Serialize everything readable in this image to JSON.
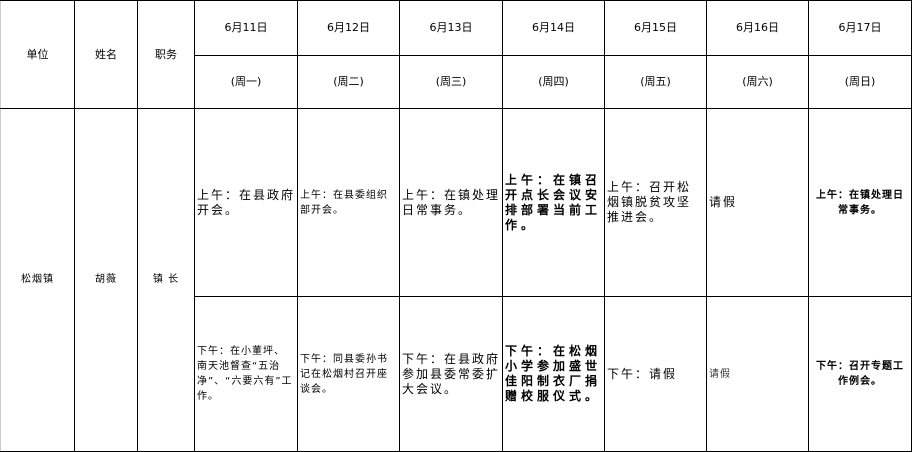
{
  "headers": {
    "unit": "单位",
    "name": "姓名",
    "position": "职务"
  },
  "days": [
    {
      "date": "6月11日",
      "weekday": "(周一)"
    },
    {
      "date": "6月12日",
      "weekday": "(周二)"
    },
    {
      "date": "6月13日",
      "weekday": "(周三)"
    },
    {
      "date": "6月14日",
      "weekday": "(周四)"
    },
    {
      "date": "6月15日",
      "weekday": "(周五)"
    },
    {
      "date": "6月16日",
      "weekday": "(周六)"
    },
    {
      "date": "6月17日",
      "weekday": "(周日)"
    }
  ],
  "row": {
    "unit": "松烟镇",
    "name": "胡薇",
    "position": "镇 长",
    "morning": [
      "上午：在县政府开会。",
      "上午：在县委组织部开会。",
      "上午：在镇处理日常事务。",
      "上午：在镇召开点长会议安排部署当前工作。",
      "上午：召开松烟镇脱贫攻坚推进会。",
      "请假",
      "上午：在镇处理日常事务。"
    ],
    "afternoon": [
      "下午：在小董坪、南天池督查“五治净”、“六要六有”工作。",
      "下午：同县委孙书记在松烟村召开座谈会。",
      "下午：在县政府参加县委常委扩大会议。",
      "下午：在松烟小学参加盛世佳阳制衣厂捐赠校服仪式。",
      "下午：请假",
      "请假",
      "下午：召开专题工作例会。"
    ]
  }
}
